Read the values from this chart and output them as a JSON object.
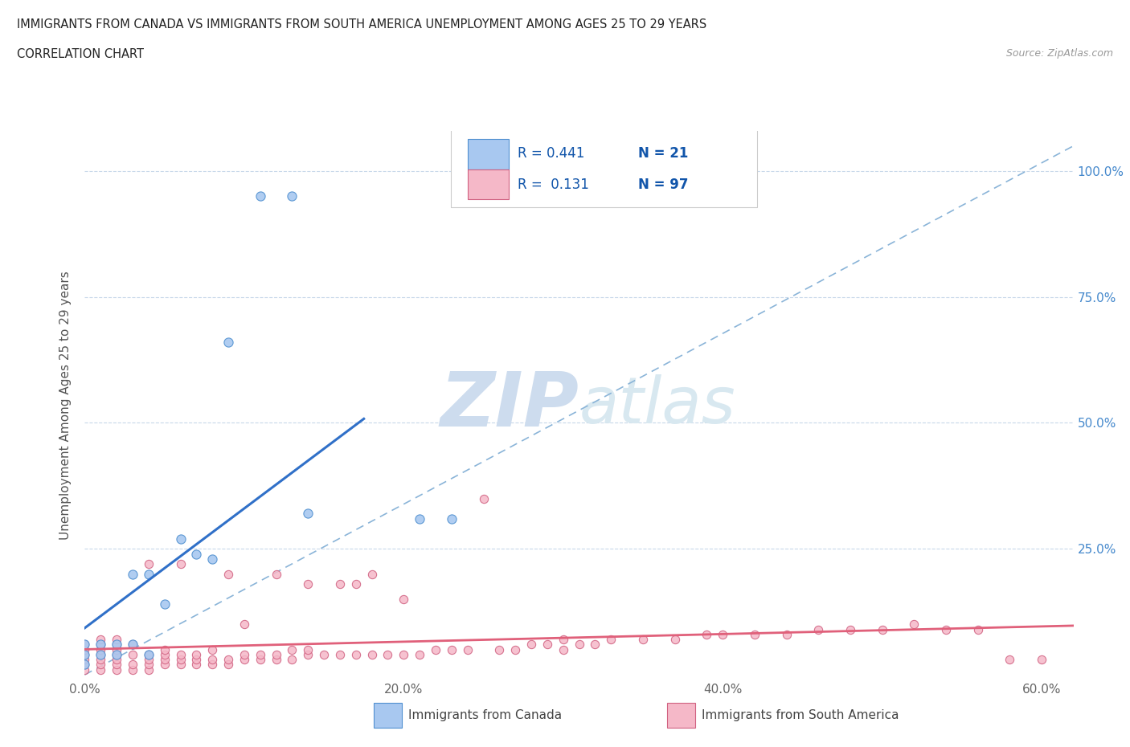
{
  "title_line1": "IMMIGRANTS FROM CANADA VS IMMIGRANTS FROM SOUTH AMERICA UNEMPLOYMENT AMONG AGES 25 TO 29 YEARS",
  "title_line2": "CORRELATION CHART",
  "source_text": "Source: ZipAtlas.com",
  "ylabel": "Unemployment Among Ages 25 to 29 years",
  "xlim": [
    0.0,
    0.62
  ],
  "ylim": [
    -0.01,
    1.08
  ],
  "xtick_labels": [
    "0.0%",
    "20.0%",
    "40.0%",
    "60.0%"
  ],
  "xtick_values": [
    0.0,
    0.2,
    0.4,
    0.6
  ],
  "ytick_values": [
    0.25,
    0.5,
    0.75,
    1.0
  ],
  "ytick_labels": [
    "25.0%",
    "50.0%",
    "75.0%",
    "100.0%"
  ],
  "background_color": "#ffffff",
  "watermark_zip": "ZIP",
  "watermark_atlas": "atlas",
  "watermark_color": "#cddcee",
  "canada_color": "#a8c8f0",
  "canada_edge_color": "#5090d0",
  "canada_line_color": "#3070c8",
  "south_america_color": "#f5b8c8",
  "south_america_edge_color": "#d06080",
  "south_america_line_color": "#e0607a",
  "trend_line_color": "#8ab4d8",
  "legend_R_canada": "0.441",
  "legend_N_canada": "21",
  "legend_R_south_america": "0.131",
  "legend_N_south_america": "97",
  "canada_scatter_x": [
    0.0,
    0.0,
    0.0,
    0.01,
    0.01,
    0.02,
    0.02,
    0.03,
    0.03,
    0.04,
    0.04,
    0.05,
    0.06,
    0.07,
    0.08,
    0.09,
    0.11,
    0.13,
    0.14,
    0.21,
    0.23
  ],
  "canada_scatter_y": [
    0.02,
    0.04,
    0.06,
    0.04,
    0.06,
    0.04,
    0.06,
    0.06,
    0.2,
    0.04,
    0.2,
    0.14,
    0.27,
    0.24,
    0.23,
    0.66,
    0.95,
    0.95,
    0.32,
    0.31,
    0.31
  ],
  "south_america_scatter_x": [
    0.0,
    0.0,
    0.0,
    0.0,
    0.0,
    0.0,
    0.01,
    0.01,
    0.01,
    0.01,
    0.01,
    0.01,
    0.01,
    0.02,
    0.02,
    0.02,
    0.02,
    0.02,
    0.02,
    0.02,
    0.03,
    0.03,
    0.03,
    0.03,
    0.04,
    0.04,
    0.04,
    0.04,
    0.04,
    0.05,
    0.05,
    0.05,
    0.05,
    0.06,
    0.06,
    0.06,
    0.06,
    0.07,
    0.07,
    0.07,
    0.08,
    0.08,
    0.08,
    0.09,
    0.09,
    0.09,
    0.1,
    0.1,
    0.1,
    0.11,
    0.11,
    0.12,
    0.12,
    0.12,
    0.13,
    0.13,
    0.14,
    0.14,
    0.14,
    0.15,
    0.16,
    0.16,
    0.17,
    0.17,
    0.18,
    0.18,
    0.19,
    0.2,
    0.2,
    0.21,
    0.22,
    0.23,
    0.24,
    0.25,
    0.26,
    0.27,
    0.28,
    0.29,
    0.3,
    0.3,
    0.31,
    0.32,
    0.33,
    0.35,
    0.37,
    0.39,
    0.4,
    0.42,
    0.44,
    0.46,
    0.48,
    0.5,
    0.52,
    0.54,
    0.56,
    0.58,
    0.6
  ],
  "south_america_scatter_y": [
    0.01,
    0.02,
    0.03,
    0.04,
    0.05,
    0.06,
    0.01,
    0.02,
    0.03,
    0.04,
    0.05,
    0.06,
    0.07,
    0.01,
    0.02,
    0.03,
    0.04,
    0.05,
    0.06,
    0.07,
    0.01,
    0.02,
    0.04,
    0.06,
    0.01,
    0.02,
    0.03,
    0.04,
    0.22,
    0.02,
    0.03,
    0.04,
    0.05,
    0.02,
    0.03,
    0.04,
    0.22,
    0.02,
    0.03,
    0.04,
    0.02,
    0.03,
    0.05,
    0.02,
    0.03,
    0.2,
    0.03,
    0.04,
    0.1,
    0.03,
    0.04,
    0.03,
    0.04,
    0.2,
    0.03,
    0.05,
    0.04,
    0.05,
    0.18,
    0.04,
    0.04,
    0.18,
    0.04,
    0.18,
    0.04,
    0.2,
    0.04,
    0.04,
    0.15,
    0.04,
    0.05,
    0.05,
    0.05,
    0.35,
    0.05,
    0.05,
    0.06,
    0.06,
    0.05,
    0.07,
    0.06,
    0.06,
    0.07,
    0.07,
    0.07,
    0.08,
    0.08,
    0.08,
    0.08,
    0.09,
    0.09,
    0.09,
    0.1,
    0.09,
    0.09,
    0.03,
    0.03
  ]
}
